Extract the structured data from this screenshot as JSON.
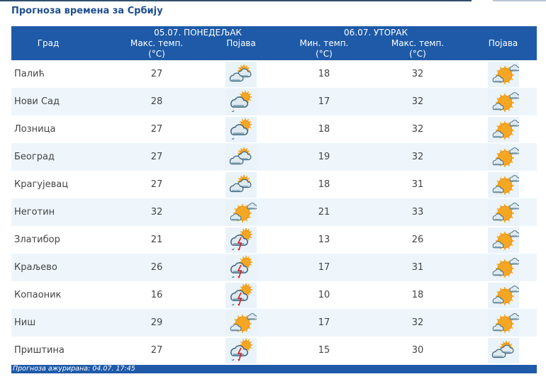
{
  "title": "Прогноза времена за Србију",
  "header": {
    "city": "Град",
    "day1": "05.07. ПОНЕДЕЉАК",
    "day2": "06.07. УТОРАК",
    "max": "Макс. темп.",
    "min": "Мин. темп.",
    "unit": "(°C)",
    "phenomenon": "Појава"
  },
  "rows": [
    {
      "city": "Палић",
      "max1": "27",
      "icon1": "partly-cloudy",
      "min2": "18",
      "max2": "32",
      "icon2": "sunny-cloud"
    },
    {
      "city": "Нови Сад",
      "max1": "28",
      "icon1": "cloudy-shower",
      "min2": "17",
      "max2": "32",
      "icon2": "sunny-cloud"
    },
    {
      "city": "Лозница",
      "max1": "27",
      "icon1": "cloudy-shower",
      "min2": "18",
      "max2": "32",
      "icon2": "sunny-cloud"
    },
    {
      "city": "Београд",
      "max1": "27",
      "icon1": "partly-cloudy",
      "min2": "19",
      "max2": "32",
      "icon2": "sunny-cloud"
    },
    {
      "city": "Крагујевац",
      "max1": "27",
      "icon1": "partly-cloudy",
      "min2": "18",
      "max2": "31",
      "icon2": "sunny-cloud"
    },
    {
      "city": "Неготин",
      "max1": "32",
      "icon1": "sunny-cloud",
      "min2": "21",
      "max2": "33",
      "icon2": "sunny-cloud"
    },
    {
      "city": "Златибор",
      "max1": "21",
      "icon1": "thunderstorm",
      "min2": "13",
      "max2": "26",
      "icon2": "sunny-cloud"
    },
    {
      "city": "Краљево",
      "max1": "26",
      "icon1": "thunderstorm",
      "min2": "17",
      "max2": "31",
      "icon2": "sunny-cloud"
    },
    {
      "city": "Копаоник",
      "max1": "16",
      "icon1": "thunderstorm",
      "min2": "10",
      "max2": "18",
      "icon2": "sunny-cloud"
    },
    {
      "city": "Ниш",
      "max1": "29",
      "icon1": "sunny-cloud",
      "min2": "17",
      "max2": "32",
      "icon2": "sunny-cloud"
    },
    {
      "city": "Приштина",
      "max1": "27",
      "icon1": "thunderstorm",
      "min2": "15",
      "max2": "30",
      "icon2": "partly-cloudy"
    }
  ],
  "footer": "Прогноза ажурирана:  04.07. 17:45",
  "colors": {
    "header": "#1e5aa8",
    "title": "#1e4f8f",
    "stripe": "#eef6fb"
  }
}
